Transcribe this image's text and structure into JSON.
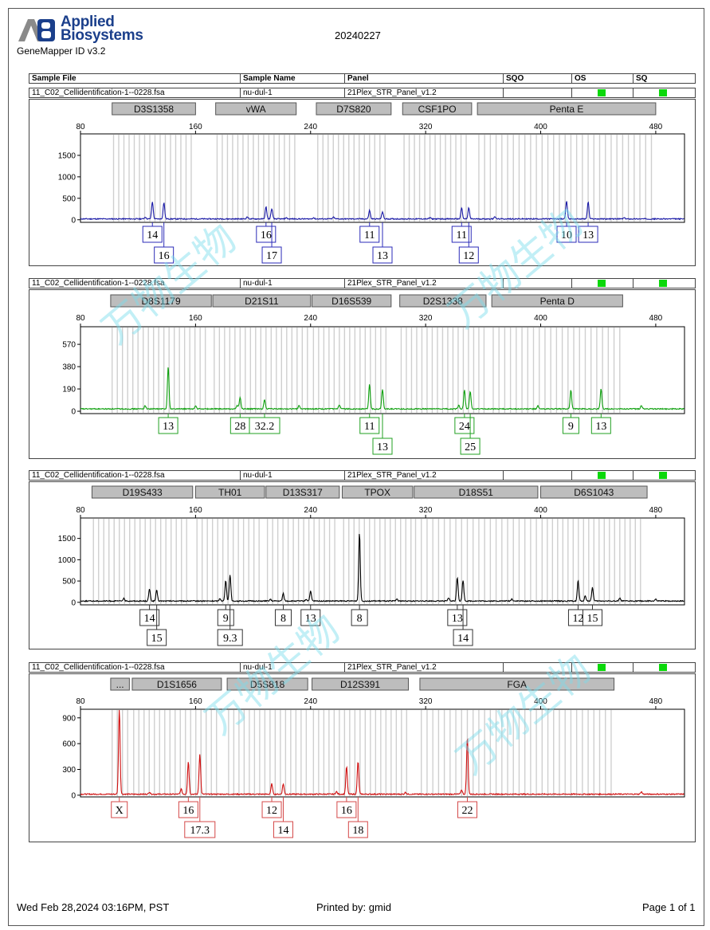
{
  "report": {
    "logo_text_line1": "Applied",
    "logo_text_line2": "Biosystems",
    "version": "GeneMapper ID v3.2",
    "date": "20240227",
    "footer_left": "Wed Feb 28,2024 03:16PM, PST",
    "footer_center": "Printed by: gmid",
    "footer_right": "Page 1 of 1",
    "watermark": "万物生物"
  },
  "table_header": {
    "sample_file": "Sample File",
    "sample_name": "Sample Name",
    "panel": "Panel",
    "sqo": "SQO",
    "os": "OS",
    "sq": "SQ"
  },
  "sample": {
    "file": "11_C02_Cellidentification-1--0228.fsa",
    "name": "nu-dul-1",
    "panel": "21Plex_STR_Panel_v1.2",
    "quality_color": "#0bd80b"
  },
  "chart_data": [
    {
      "type": "line",
      "dye": "blue",
      "color": "#1a1aa6",
      "xlim": [
        80,
        500
      ],
      "x_ticks": [
        80,
        160,
        240,
        320,
        400,
        480
      ],
      "ylim": [
        -60,
        2000
      ],
      "y_ticks": [
        0,
        500,
        1000,
        1500
      ],
      "baseline": 20,
      "loci": [
        {
          "name": "D3S1358",
          "range": [
            102,
            160
          ]
        },
        {
          "name": "vWA",
          "range": [
            174,
            230
          ]
        },
        {
          "name": "D7S820",
          "range": [
            244,
            296
          ]
        },
        {
          "name": "CSF1PO",
          "range": [
            304,
            352
          ]
        },
        {
          "name": "Penta E",
          "range": [
            356,
            480
          ]
        }
      ],
      "peaks": [
        {
          "x": 130,
          "y": 400,
          "allele": "14",
          "row": 1
        },
        {
          "x": 138,
          "y": 380,
          "allele": "16",
          "row": 2
        },
        {
          "x": 209,
          "y": 280,
          "allele": "16",
          "row": 1
        },
        {
          "x": 213,
          "y": 240,
          "allele": "17",
          "row": 2
        },
        {
          "x": 281,
          "y": 200,
          "allele": "11",
          "row": 1
        },
        {
          "x": 290,
          "y": 170,
          "allele": "13",
          "row": 2
        },
        {
          "x": 345,
          "y": 260,
          "allele": "11",
          "row": 1
        },
        {
          "x": 350,
          "y": 260,
          "allele": "12",
          "row": 2
        },
        {
          "x": 418,
          "y": 430,
          "allele": "10",
          "row": 1
        },
        {
          "x": 433,
          "y": 400,
          "allele": "13",
          "row": 1
        }
      ],
      "minor_peaks": [
        {
          "x": 196,
          "y": 50
        },
        {
          "x": 242,
          "y": 30
        },
        {
          "x": 256,
          "y": 40
        },
        {
          "x": 323,
          "y": 30
        },
        {
          "x": 125,
          "y": 45
        },
        {
          "x": 223,
          "y": 28
        },
        {
          "x": 458,
          "y": 25
        },
        {
          "x": 368,
          "y": 55
        }
      ]
    },
    {
      "type": "line",
      "dye": "green",
      "color": "#0fa00f",
      "xlim": [
        80,
        500
      ],
      "x_ticks": [
        80,
        160,
        240,
        320,
        400,
        480
      ],
      "ylim": [
        -20,
        720
      ],
      "y_ticks": [
        0,
        190,
        380,
        570
      ],
      "baseline": 20,
      "loci": [
        {
          "name": "D8S1179",
          "range": [
            101,
            171
          ]
        },
        {
          "name": "D21S11",
          "range": [
            172,
            240
          ]
        },
        {
          "name": "D16S539",
          "range": [
            241,
            296
          ]
        },
        {
          "name": "D2S1338",
          "range": [
            302,
            362
          ]
        },
        {
          "name": "Penta D",
          "range": [
            366,
            457
          ]
        }
      ],
      "peaks": [
        {
          "x": 141,
          "y": 360,
          "allele": "13",
          "row": 1
        },
        {
          "x": 191,
          "y": 100,
          "allele": "28",
          "row": 1
        },
        {
          "x": 208,
          "y": 80,
          "allele": "32.2",
          "row": 1
        },
        {
          "x": 281,
          "y": 210,
          "allele": "11",
          "row": 1
        },
        {
          "x": 290,
          "y": 170,
          "allele": "13",
          "row": 2
        },
        {
          "x": 347,
          "y": 160,
          "allele": "24",
          "row": 1
        },
        {
          "x": 351,
          "y": 150,
          "allele": "25",
          "row": 2
        },
        {
          "x": 421,
          "y": 160,
          "allele": "9",
          "row": 1
        },
        {
          "x": 442,
          "y": 170,
          "allele": "13",
          "row": 1
        }
      ],
      "minor_peaks": [
        {
          "x": 189,
          "y": 30
        },
        {
          "x": 343,
          "y": 30
        },
        {
          "x": 125,
          "y": 28
        },
        {
          "x": 260,
          "y": 32
        },
        {
          "x": 398,
          "y": 26
        },
        {
          "x": 470,
          "y": 30
        },
        {
          "x": 232,
          "y": 30
        },
        {
          "x": 160,
          "y": 25
        }
      ]
    },
    {
      "type": "line",
      "dye": "black",
      "color": "#000000",
      "xlim": [
        80,
        500
      ],
      "x_ticks": [
        80,
        160,
        240,
        320,
        400,
        480
      ],
      "ylim": [
        -60,
        1980
      ],
      "y_ticks": [
        0,
        500,
        1000,
        1500
      ],
      "baseline": 30,
      "loci": [
        {
          "name": "D19S433",
          "range": [
            88,
            158
          ]
        },
        {
          "name": "TH01",
          "range": [
            160,
            208
          ]
        },
        {
          "name": "D13S317",
          "range": [
            209,
            260
          ]
        },
        {
          "name": "TPOX",
          "range": [
            262,
            311
          ]
        },
        {
          "name": "D18S51",
          "range": [
            312,
            398
          ]
        },
        {
          "name": "D6S1043",
          "range": [
            400,
            474
          ]
        }
      ],
      "peaks": [
        {
          "x": 128,
          "y": 280,
          "allele": "14",
          "row": 1
        },
        {
          "x": 133,
          "y": 250,
          "allele": "15",
          "row": 2
        },
        {
          "x": 181,
          "y": 480,
          "allele": "9",
          "row": 1
        },
        {
          "x": 184,
          "y": 620,
          "allele": "9.3",
          "row": 2
        },
        {
          "x": 221,
          "y": 180,
          "allele": "8",
          "row": 1
        },
        {
          "x": 240,
          "y": 230,
          "allele": "13",
          "row": 1
        },
        {
          "x": 274,
          "y": 1600,
          "allele": "8",
          "row": 1
        },
        {
          "x": 342,
          "y": 560,
          "allele": "13",
          "row": 1
        },
        {
          "x": 346,
          "y": 490,
          "allele": "14",
          "row": 2
        },
        {
          "x": 426,
          "y": 480,
          "allele": "12",
          "row": 1
        },
        {
          "x": 436,
          "y": 320,
          "allele": "15",
          "row": 1
        }
      ],
      "minor_peaks": [
        {
          "x": 177,
          "y": 60
        },
        {
          "x": 212,
          "y": 40
        },
        {
          "x": 237,
          "y": 40
        },
        {
          "x": 336,
          "y": 70
        },
        {
          "x": 431,
          "y": 120
        },
        {
          "x": 110,
          "y": 60
        },
        {
          "x": 300,
          "y": 50
        },
        {
          "x": 380,
          "y": 50
        },
        {
          "x": 455,
          "y": 70
        },
        {
          "x": 480,
          "y": 45
        }
      ]
    },
    {
      "type": "line",
      "dye": "red",
      "color": "#d01010",
      "xlim": [
        80,
        500
      ],
      "x_ticks": [
        80,
        160,
        240,
        320,
        400,
        480
      ],
      "ylim": [
        -20,
        1000
      ],
      "y_ticks": [
        0,
        300,
        600,
        900
      ],
      "baseline": 12,
      "loci": [
        {
          "name": "...",
          "range": [
            101,
            114
          ]
        },
        {
          "name": "D1S1656",
          "range": [
            116,
            178
          ]
        },
        {
          "name": "D5S818",
          "range": [
            182,
            238
          ]
        },
        {
          "name": "D12S391",
          "range": [
            241,
            308
          ]
        },
        {
          "name": "FGA",
          "range": [
            316,
            451
          ]
        }
      ],
      "peaks": [
        {
          "x": 107,
          "y": 1000,
          "allele": "X",
          "row": 1
        },
        {
          "x": 155,
          "y": 380,
          "allele": "16",
          "row": 1
        },
        {
          "x": 163,
          "y": 470,
          "allele": "17.3",
          "row": 2
        },
        {
          "x": 213,
          "y": 120,
          "allele": "12",
          "row": 1
        },
        {
          "x": 221,
          "y": 120,
          "allele": "14",
          "row": 2
        },
        {
          "x": 265,
          "y": 320,
          "allele": "16",
          "row": 1
        },
        {
          "x": 273,
          "y": 380,
          "allele": "18",
          "row": 2
        },
        {
          "x": 349,
          "y": 660,
          "allele": "22",
          "row": 1
        }
      ],
      "minor_peaks": [
        {
          "x": 150,
          "y": 60
        },
        {
          "x": 345,
          "y": 50
        },
        {
          "x": 258,
          "y": 30
        },
        {
          "x": 128,
          "y": 25
        },
        {
          "x": 306,
          "y": 22
        },
        {
          "x": 470,
          "y": 28
        }
      ]
    }
  ]
}
